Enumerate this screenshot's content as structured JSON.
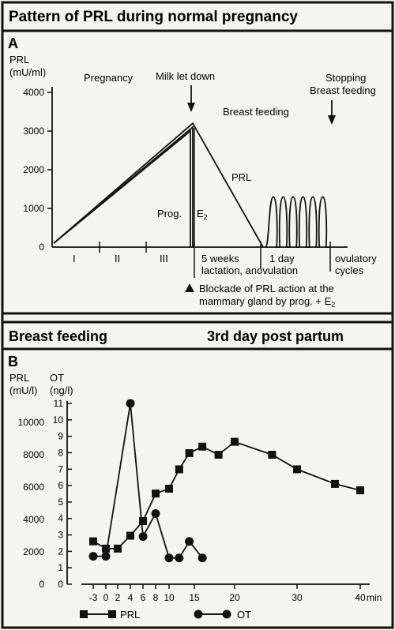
{
  "panel_a": {
    "title": "Pattern of PRL during normal pregnancy",
    "letter": "A",
    "ylabel_1": "PRL",
    "ylabel_2": "(mU/ml)",
    "yticks": [
      "4000",
      "3000",
      "2000",
      "1000",
      "0"
    ],
    "annotations": {
      "pregnancy": "Pregnancy",
      "milk_let_down": "Milk let down",
      "breast_feeding": "Breast feeding",
      "stopping_1": "Stopping",
      "stopping_2": "Breast feeding",
      "prl": "PRL",
      "prog": "Prog.",
      "e2": "E",
      "e2_sub": "2"
    },
    "phases": {
      "tri1": "I",
      "tri2": "II",
      "tri3": "III",
      "weeks_1": "5 weeks",
      "weeks_2": "lactation, anovulation",
      "day_1": "1 day",
      "ovul_1": "ovulatory",
      "ovul_2": "cycles"
    },
    "note_1": "Blockade of PRL action at the",
    "note_2": "mammary gland by prog. + E",
    "note_sub": "2"
  },
  "panel_b": {
    "header_left": "Breast feeding",
    "header_right": "3rd day post partum",
    "letter": "B",
    "prl_label_1": "PRL",
    "prl_label_2": "(mU/l)",
    "ot_label_1": "OT",
    "ot_label_2": "(ng/l)",
    "xunit": "min",
    "legend_prl": "PRL",
    "legend_ot": "OT"
  },
  "chart_data": [
    {
      "type": "line",
      "title": "Pattern of PRL during normal pregnancy",
      "ylabel": "PRL (mU/ml)",
      "ylim": [
        0,
        4000
      ],
      "yticks": [
        0,
        1000,
        2000,
        3000,
        4000
      ],
      "series": [
        {
          "name": "PRL",
          "x": [
            "start",
            "delivery",
            "end of 5 weeks"
          ],
          "y": [
            100,
            3200,
            0
          ]
        },
        {
          "name": "Prog.",
          "x": [
            "start",
            "delivery"
          ],
          "y": [
            100,
            3100
          ]
        },
        {
          "name": "E2",
          "x": [
            "start",
            "delivery"
          ],
          "y": [
            100,
            3000
          ]
        }
      ],
      "phases": [
        "I",
        "II",
        "III",
        "5 weeks lactation, anovulation",
        "1 day",
        "ovulatory cycles"
      ],
      "suckling_pulses": {
        "count": 6,
        "peak": 1300
      }
    },
    {
      "type": "line",
      "title": "Breast feeding 3rd day post partum",
      "xlabel": "min",
      "x_ticks": [
        "-3",
        "0",
        "2",
        "4",
        "6",
        "8",
        "10",
        "15",
        "20",
        "30",
        "40"
      ],
      "y_left": {
        "label": "PRL (mU/l)",
        "ticks": [
          0,
          2000,
          4000,
          6000,
          8000,
          10000
        ],
        "lim": [
          0,
          11000
        ]
      },
      "y_right": {
        "label": "OT (ng/l)",
        "ticks": [
          0,
          1,
          2,
          3,
          4,
          5,
          6,
          7,
          8,
          9,
          10,
          11
        ],
        "lim": [
          0,
          11
        ]
      },
      "series": [
        {
          "name": "PRL",
          "axis": "left",
          "marker": "square",
          "x": [
            -3,
            0,
            2,
            4,
            6,
            8,
            10,
            12,
            14,
            16,
            18,
            20,
            26,
            30,
            36,
            40
          ],
          "y": [
            2650,
            2200,
            2200,
            3000,
            3900,
            5600,
            5900,
            7100,
            8100,
            8500,
            8000,
            8800,
            8000,
            7100,
            6200,
            5800
          ]
        },
        {
          "name": "OT",
          "axis": "right",
          "marker": "circle",
          "x": [
            -3,
            0,
            4,
            6,
            8,
            10,
            12,
            14,
            16
          ],
          "y": [
            1.7,
            1.7,
            11.0,
            2.9,
            4.3,
            1.6,
            1.6,
            2.6,
            1.6
          ]
        }
      ]
    }
  ]
}
